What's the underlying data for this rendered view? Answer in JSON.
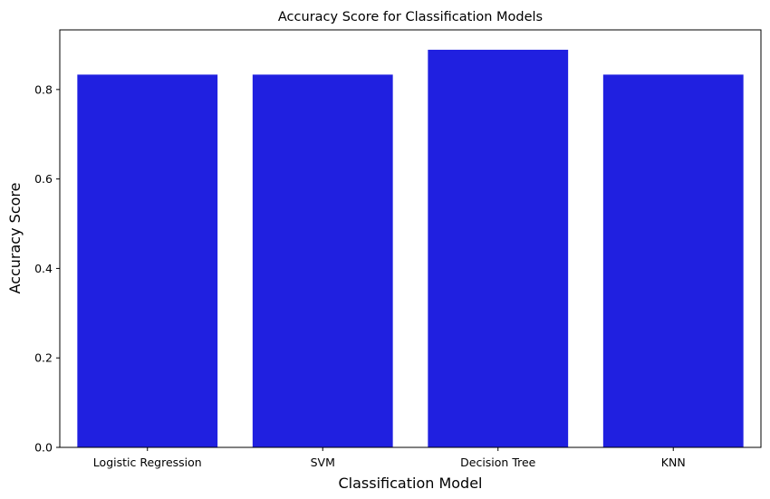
{
  "chart_data": {
    "type": "bar",
    "title": "Accuracy Score for Classification Models",
    "xlabel": "Classification Model",
    "ylabel": "Accuracy Score",
    "categories": [
      "Logistic Regression",
      "SVM",
      "Decision Tree",
      "KNN"
    ],
    "values": [
      0.8333,
      0.8333,
      0.8889,
      0.8333
    ],
    "ylim": [
      0,
      0.9333
    ],
    "yticks": [
      0.0,
      0.2,
      0.4,
      0.6,
      0.8
    ],
    "ytick_labels": [
      "0.0",
      "0.2",
      "0.4",
      "0.6",
      "0.8"
    ],
    "bar_color": "#2020e0",
    "grid": false,
    "legend": "none"
  }
}
